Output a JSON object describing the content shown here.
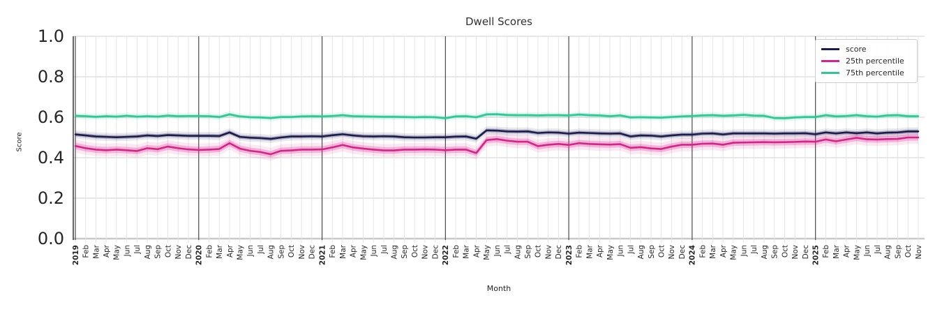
{
  "chart_data": {
    "type": "line",
    "title": "Dwell Scores",
    "xlabel": "Month",
    "ylabel": "Score",
    "ylim": [
      0.0,
      1.0
    ],
    "y_ticks": [
      0.0,
      0.2,
      0.4,
      0.6,
      0.8,
      1.0
    ],
    "grid": true,
    "legend_position": "upper right",
    "year_boundary_indices": [
      0,
      12,
      24,
      36,
      48,
      60,
      72
    ],
    "x_tick_labels": [
      "2019",
      "Feb",
      "Mar",
      "Apr",
      "May",
      "Jun",
      "Jul",
      "Aug",
      "Sep",
      "Oct",
      "Nov",
      "Dec",
      "2020",
      "Feb",
      "Mar",
      "Apr",
      "May",
      "Jun",
      "Jul",
      "Aug",
      "Sep",
      "Oct",
      "Nov",
      "Dec",
      "2021",
      "Feb",
      "Mar",
      "Apr",
      "May",
      "Jun",
      "Jul",
      "Aug",
      "Sep",
      "Oct",
      "Nov",
      "Dec",
      "2022",
      "Feb",
      "Mar",
      "Apr",
      "May",
      "Jun",
      "Jul",
      "Aug",
      "Sep",
      "Oct",
      "Nov",
      "Dec",
      "2023",
      "Feb",
      "Mar",
      "Apr",
      "May",
      "Jun",
      "Jul",
      "Aug",
      "Sep",
      "Oct",
      "Nov",
      "Dec",
      "2024",
      "Feb",
      "Mar",
      "Apr",
      "May",
      "Jun",
      "Jul",
      "Aug",
      "Sep",
      "Oct",
      "Nov",
      "Dec",
      "2025",
      "Feb",
      "Mar",
      "Apr",
      "May",
      "Jun",
      "Jul",
      "Aug",
      "Sep",
      "Oct",
      "Nov"
    ],
    "series": [
      {
        "name": "score",
        "color": "#1b1b4f",
        "ci_halfwidth": 0.01,
        "values": [
          0.515,
          0.51,
          0.505,
          0.503,
          0.501,
          0.503,
          0.505,
          0.51,
          0.507,
          0.512,
          0.51,
          0.508,
          0.508,
          0.508,
          0.507,
          0.525,
          0.503,
          0.499,
          0.497,
          0.493,
          0.5,
          0.505,
          0.505,
          0.506,
          0.505,
          0.511,
          0.516,
          0.51,
          0.506,
          0.505,
          0.506,
          0.505,
          0.501,
          0.5,
          0.5,
          0.501,
          0.501,
          0.504,
          0.505,
          0.494,
          0.535,
          0.534,
          0.53,
          0.529,
          0.53,
          0.522,
          0.525,
          0.524,
          0.519,
          0.524,
          0.522,
          0.52,
          0.519,
          0.52,
          0.505,
          0.51,
          0.509,
          0.505,
          0.51,
          0.514,
          0.514,
          0.519,
          0.52,
          0.515,
          0.52,
          0.52,
          0.52,
          0.52,
          0.519,
          0.52,
          0.52,
          0.521,
          0.516,
          0.525,
          0.52,
          0.525,
          0.521,
          0.525,
          0.52,
          0.524,
          0.525,
          0.53,
          0.53
        ]
      },
      {
        "name": "25th percentile",
        "color": "#d6228c",
        "ci_halfwidth": 0.016,
        "values": [
          0.458,
          0.447,
          0.44,
          0.437,
          0.44,
          0.437,
          0.433,
          0.447,
          0.442,
          0.455,
          0.447,
          0.441,
          0.438,
          0.44,
          0.443,
          0.472,
          0.445,
          0.434,
          0.428,
          0.417,
          0.434,
          0.436,
          0.44,
          0.44,
          0.441,
          0.451,
          0.463,
          0.451,
          0.445,
          0.44,
          0.436,
          0.436,
          0.44,
          0.44,
          0.441,
          0.44,
          0.437,
          0.44,
          0.44,
          0.423,
          0.487,
          0.492,
          0.484,
          0.479,
          0.479,
          0.457,
          0.464,
          0.468,
          0.463,
          0.472,
          0.468,
          0.466,
          0.465,
          0.467,
          0.449,
          0.452,
          0.446,
          0.443,
          0.455,
          0.464,
          0.464,
          0.469,
          0.47,
          0.464,
          0.474,
          0.475,
          0.476,
          0.477,
          0.476,
          0.477,
          0.478,
          0.48,
          0.479,
          0.49,
          0.481,
          0.49,
          0.498,
          0.491,
          0.49,
          0.492,
          0.493,
          0.5,
          0.5
        ]
      },
      {
        "name": "75th percentile",
        "color": "#2ec795",
        "ci_halfwidth": 0.008,
        "values": [
          0.607,
          0.605,
          0.602,
          0.605,
          0.603,
          0.607,
          0.603,
          0.605,
          0.603,
          0.608,
          0.605,
          0.606,
          0.606,
          0.605,
          0.601,
          0.614,
          0.604,
          0.6,
          0.599,
          0.596,
          0.601,
          0.601,
          0.604,
          0.605,
          0.604,
          0.606,
          0.61,
          0.605,
          0.604,
          0.603,
          0.602,
          0.602,
          0.601,
          0.6,
          0.601,
          0.6,
          0.595,
          0.604,
          0.605,
          0.6,
          0.614,
          0.615,
          0.611,
          0.61,
          0.61,
          0.609,
          0.61,
          0.61,
          0.609,
          0.613,
          0.61,
          0.609,
          0.605,
          0.609,
          0.599,
          0.6,
          0.599,
          0.598,
          0.601,
          0.604,
          0.606,
          0.609,
          0.61,
          0.607,
          0.609,
          0.612,
          0.608,
          0.607,
          0.596,
          0.595,
          0.599,
          0.601,
          0.601,
          0.61,
          0.604,
          0.606,
          0.61,
          0.605,
          0.603,
          0.609,
          0.61,
          0.605,
          0.605
        ]
      }
    ],
    "style": {
      "month_grid_color": "#e4e4e4",
      "major_grid_color": "#d9d9d9",
      "zero_line_color": "#c9c9c9",
      "year_line_color": "#3d3d3d",
      "spine_color": "#262626",
      "tick_label_color": "#262626"
    }
  }
}
